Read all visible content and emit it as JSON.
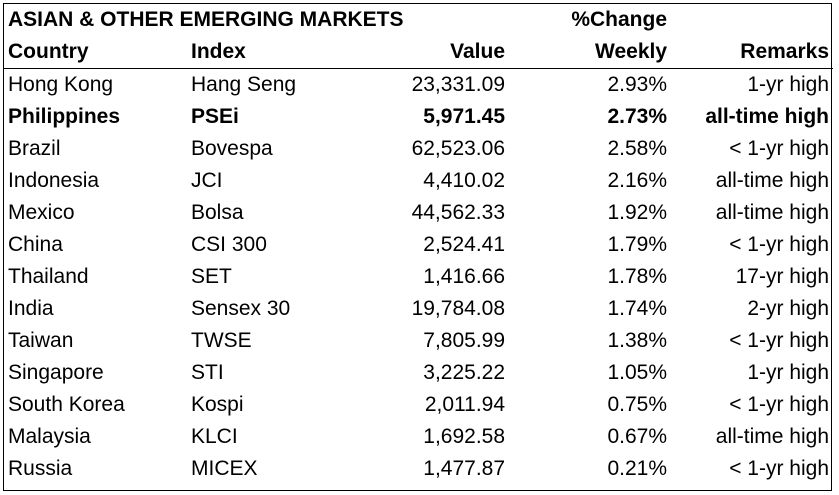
{
  "header": {
    "title": "ASIAN & OTHER EMERGING MARKETS",
    "pct_change_top": "%Change",
    "columns": {
      "country": "Country",
      "index": "Index",
      "value": "Value",
      "weekly": "Weekly",
      "remarks": "Remarks"
    }
  },
  "rows": [
    {
      "country": "Hong Kong",
      "index": "Hang Seng",
      "value": "23,331.09",
      "change": "2.93%",
      "remarks": "1-yr high",
      "bold": false
    },
    {
      "country": "Philippines",
      "index": "PSEi",
      "value": "5,971.45",
      "change": "2.73%",
      "remarks": "all-time high",
      "bold": true
    },
    {
      "country": "Brazil",
      "index": "Bovespa",
      "value": "62,523.06",
      "change": "2.58%",
      "remarks": "< 1-yr high",
      "bold": false
    },
    {
      "country": "Indonesia",
      "index": "JCI",
      "value": "4,410.02",
      "change": "2.16%",
      "remarks": "all-time high",
      "bold": false
    },
    {
      "country": "Mexico",
      "index": "Bolsa",
      "value": "44,562.33",
      "change": "1.92%",
      "remarks": "all-time high",
      "bold": false
    },
    {
      "country": "China",
      "index": "CSI 300",
      "value": "2,524.41",
      "change": "1.79%",
      "remarks": "< 1-yr high",
      "bold": false
    },
    {
      "country": "Thailand",
      "index": "SET",
      "value": "1,416.66",
      "change": "1.78%",
      "remarks": "17-yr high",
      "bold": false
    },
    {
      "country": "India",
      "index": "Sensex 30",
      "value": "19,784.08",
      "change": "1.74%",
      "remarks": "2-yr high",
      "bold": false
    },
    {
      "country": "Taiwan",
      "index": "TWSE",
      "value": "7,805.99",
      "change": "1.38%",
      "remarks": "< 1-yr high",
      "bold": false
    },
    {
      "country": "Singapore",
      "index": "STI",
      "value": "3,225.22",
      "change": "1.05%",
      "remarks": "1-yr high",
      "bold": false
    },
    {
      "country": "South Korea",
      "index": "Kospi",
      "value": "2,011.94",
      "change": "0.75%",
      "remarks": "< 1-yr high",
      "bold": false
    },
    {
      "country": "Malaysia",
      "index": "KLCI",
      "value": "1,692.58",
      "change": "0.67%",
      "remarks": "all-time high",
      "bold": false
    },
    {
      "country": "Russia",
      "index": "MICEX",
      "value": "1,477.87",
      "change": "0.21%",
      "remarks": "< 1-yr high",
      "bold": false
    }
  ]
}
